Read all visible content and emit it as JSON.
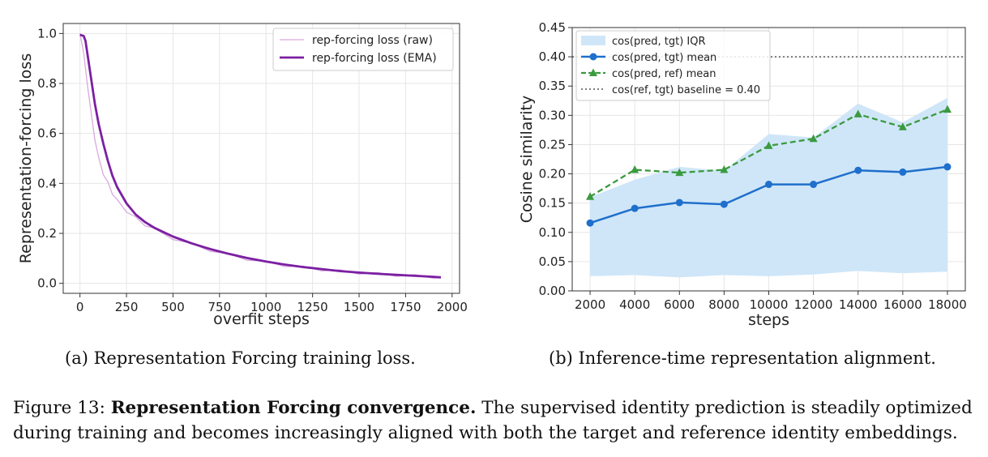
{
  "chart_data": [
    {
      "type": "line",
      "title": "",
      "xlabel": "overfit steps",
      "ylabel": "Representation-forcing loss",
      "xlim": [
        -90,
        2040
      ],
      "ylim": [
        -0.04,
        1.04
      ],
      "xticks": [
        0,
        250,
        500,
        750,
        1000,
        1250,
        1500,
        1750,
        2000
      ],
      "yticks": [
        0.0,
        0.2,
        0.4,
        0.6,
        0.8,
        1.0
      ],
      "grid": true,
      "legend_position": "top-right",
      "series": [
        {
          "name": "rep-forcing loss (raw)",
          "color": "#d9a8df",
          "x": [
            0,
            20,
            40,
            60,
            80,
            100,
            125,
            150,
            175,
            200,
            250,
            300,
            350,
            400,
            500,
            600,
            700,
            800,
            900,
            1000,
            1100,
            1200,
            1300,
            1400,
            1500,
            1600,
            1700,
            1800,
            1900,
            1940
          ],
          "y": [
            1.0,
            0.92,
            0.8,
            0.68,
            0.58,
            0.5,
            0.44,
            0.4,
            0.36,
            0.33,
            0.29,
            0.26,
            0.235,
            0.215,
            0.18,
            0.155,
            0.133,
            0.113,
            0.097,
            0.083,
            0.072,
            0.063,
            0.055,
            0.048,
            0.042,
            0.037,
            0.033,
            0.029,
            0.025,
            0.023
          ]
        },
        {
          "name": "rep-forcing loss (EMA)",
          "color": "#7b1fa2",
          "x": [
            0,
            20,
            30,
            40,
            60,
            80,
            100,
            125,
            150,
            175,
            200,
            250,
            300,
            350,
            400,
            500,
            600,
            700,
            800,
            900,
            1000,
            1100,
            1200,
            1300,
            1400,
            1500,
            1600,
            1700,
            1800,
            1900,
            1940
          ],
          "y": [
            0.995,
            0.99,
            0.97,
            0.92,
            0.82,
            0.72,
            0.64,
            0.56,
            0.49,
            0.43,
            0.385,
            0.32,
            0.275,
            0.245,
            0.222,
            0.187,
            0.16,
            0.137,
            0.118,
            0.101,
            0.087,
            0.075,
            0.065,
            0.057,
            0.049,
            0.043,
            0.038,
            0.034,
            0.03,
            0.026,
            0.024
          ]
        }
      ]
    },
    {
      "type": "line",
      "title": "",
      "xlabel": "steps",
      "ylabel": "Cosine similarity",
      "categories": [
        2000,
        4000,
        6000,
        8000,
        10000,
        12000,
        14000,
        16000,
        18000
      ],
      "xlim": [
        1200,
        18800
      ],
      "ylim": [
        0.0,
        0.45
      ],
      "yticks": [
        0.0,
        0.05,
        0.1,
        0.15,
        0.2,
        0.25,
        0.3,
        0.35,
        0.4,
        0.45
      ],
      "grid": true,
      "legend_position": "top-left",
      "iqr": {
        "name": "cos(pred, tgt) IQR",
        "color": "#cfe6f8",
        "lower": [
          0.025,
          0.027,
          0.023,
          0.027,
          0.025,
          0.028,
          0.034,
          0.03,
          0.033
        ],
        "upper": [
          0.16,
          0.19,
          0.212,
          0.205,
          0.268,
          0.262,
          0.32,
          0.288,
          0.33
        ]
      },
      "series": [
        {
          "name": "cos(pred, tgt) mean",
          "color": "#1f6fcc",
          "style": "solid-circle",
          "values": [
            0.116,
            0.141,
            0.151,
            0.148,
            0.182,
            0.182,
            0.206,
            0.203,
            0.212
          ]
        },
        {
          "name": "cos(pred, ref) mean",
          "color": "#3a9a3f",
          "style": "dashed-triangle",
          "values": [
            0.161,
            0.207,
            0.202,
            0.207,
            0.248,
            0.26,
            0.302,
            0.28,
            0.31
          ]
        }
      ],
      "baseline": {
        "name": "cos(ref, tgt) baseline = 0.40",
        "value": 0.4,
        "color": "#555555"
      }
    }
  ],
  "captions": {
    "a": "(a) Representation Forcing training loss.",
    "b": "(b) Inference-time representation alignment.",
    "figure_label": "Figure 13: ",
    "figure_bold": "Representation Forcing convergence.",
    "figure_text": " The supervised identity prediction is steadily optimized during training and becomes increasingly aligned with both the target and reference identity embeddings."
  }
}
